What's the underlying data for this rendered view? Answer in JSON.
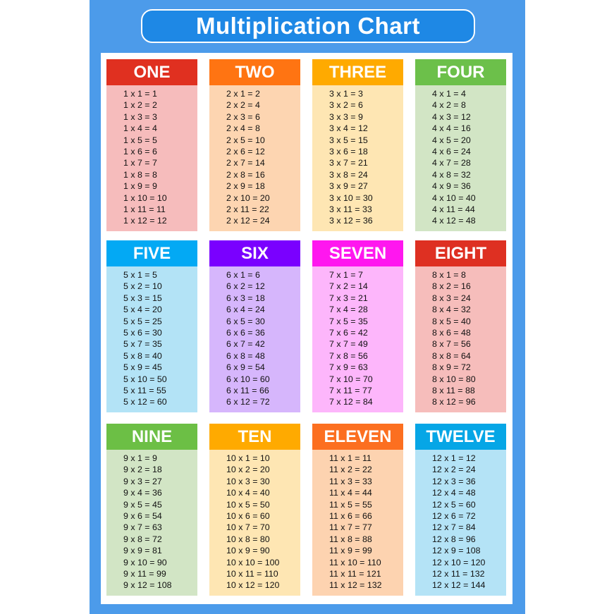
{
  "title": "Multiplication Chart",
  "cards": [
    {
      "label": "ONE",
      "header_color": "#e03020",
      "body_color": "#f6bcbc",
      "lines": [
        "1 x 1 = 1",
        "1 x 2 = 2",
        "1 x 3 = 3",
        "1 x 4 = 4",
        "1 x 5 = 5",
        "1 x 6 = 6",
        "1 x 7 = 7",
        "1 x 8 = 8",
        "1 x 9 = 9",
        "1 x 10 = 10",
        "1 x 11 = 11",
        "1 x 12 = 12"
      ]
    },
    {
      "label": "TWO",
      "header_color": "#ff7412",
      "body_color": "#fdd5b1",
      "lines": [
        "2 x 1 = 2",
        "2 x 2 = 4",
        "2 x 3 = 6",
        "2 x 4 = 8",
        "2 x 5 = 10",
        "2 x 6 = 12",
        "2 x 7 = 14",
        "2 x 8 = 16",
        "2 x 9 = 18",
        "2 x 10 = 20",
        "2 x 11 = 22",
        "2 x 12 = 24"
      ]
    },
    {
      "label": "THREE",
      "header_color": "#ffaa00",
      "body_color": "#fee6b3",
      "lines": [
        "3 x 1 = 3",
        "3 x 2 = 6",
        "3 x 3 = 9",
        "3 x 4 = 12",
        "3 x 5 = 15",
        "3 x 6 = 18",
        "3 x 7 = 21",
        "3 x 8 = 24",
        "3 x 9 = 27",
        "3 x 10 = 30",
        "3 x 11 = 33",
        "3 x 12 = 36"
      ]
    },
    {
      "label": "FOUR",
      "header_color": "#6cc04a",
      "body_color": "#d2e5c5",
      "lines": [
        "4 x 1 = 4",
        "4 x 2 = 8",
        "4 x 3 = 12",
        "4 x 4 = 16",
        "4 x 5 = 20",
        "4 x 6 = 24",
        "4 x 7 = 28",
        "4 x 8 = 32",
        "4 x 9 = 36",
        "4 x 10 = 40",
        "4 x 11 = 44",
        "4 x 12 = 48"
      ]
    },
    {
      "label": "FIVE",
      "header_color": "#03a9f4",
      "body_color": "#b3e3f6",
      "lines": [
        "5 x 1 = 5",
        "5 x 2 = 10",
        "5 x 3 = 15",
        "5 x 4 = 20",
        "5 x 5 = 25",
        "5 x 6 = 30",
        "5 x 7 = 35",
        "5 x 8 = 40",
        "5 x 9 = 45",
        "5 x 10 = 50",
        "5 x 11 = 55",
        "5 x 12 = 60"
      ]
    },
    {
      "label": "SIX",
      "header_color": "#7a00ff",
      "body_color": "#d6b6fc",
      "lines": [
        "6 x 1 = 6",
        "6 x 2 = 12",
        "6 x 3 = 18",
        "6 x 4 = 24",
        "6 x 5 = 30",
        "6 x 6 = 36",
        "6 x 7 = 42",
        "6 x 8 = 48",
        "6 x 9 = 54",
        "6 x 10 = 60",
        "6 x 11 = 66",
        "6 x 12 = 72"
      ]
    },
    {
      "label": "SEVEN",
      "header_color": "#ff17ef",
      "body_color": "#fdb6fb",
      "lines": [
        "7 x 1 = 7",
        "7 x 2 = 14",
        "7 x 3 = 21",
        "7 x 4 = 28",
        "7 x 5 = 35",
        "7 x 6 = 42",
        "7 x 7 = 49",
        "7 x 8 = 56",
        "7 x 9 = 63",
        "7 x 10 = 70",
        "7 x 11 = 77",
        "7 x 12 = 84"
      ]
    },
    {
      "label": "EIGHT",
      "header_color": "#de3022",
      "body_color": "#f6bdbb",
      "lines": [
        "8 x 1 = 8",
        "8 x 2 = 16",
        "8 x 3 = 24",
        "8 x 4 = 32",
        "8 x 5 = 40",
        "8 x 6 = 48",
        "8 x 7 = 56",
        "8 x 8 = 64",
        "8 x 9 = 72",
        "8 x 10 = 80",
        "8 x 11 = 88",
        "8 x 12 = 96"
      ]
    },
    {
      "label": "NINE",
      "header_color": "#6cbf45",
      "body_color": "#d2e5c5",
      "lines": [
        "9 x 1 = 9",
        "9 x 2 = 18",
        "9 x 3 = 27",
        "9 x 4 = 36",
        "9 x 5 = 45",
        "9 x 6 = 54",
        "9 x 7 = 63",
        "9 x 8 = 72",
        "9 x 9 = 81",
        "9 x 10 = 90",
        "9 x 11 = 99",
        "9 x 12 = 108"
      ]
    },
    {
      "label": "TEN",
      "header_color": "#ffaa00",
      "body_color": "#fee6b3",
      "lines": [
        "10 x 1 = 10",
        "10 x 2 = 20",
        "10 x 3 = 30",
        "10 x 4 = 40",
        "10 x 5 = 50",
        "10 x 6 = 60",
        "10 x 7 = 70",
        "10 x 8 = 80",
        "10 x 9 = 90",
        "10 x 10 = 100",
        "10 x 11 = 110",
        "10 x 12 = 120"
      ]
    },
    {
      "label": "ELEVEN",
      "header_color": "#fc6f20",
      "body_color": "#fdd3b0",
      "lines": [
        "11 x 1 = 11",
        "11 x 2 = 22",
        "11 x 3 = 33",
        "11 x 4 = 44",
        "11 x 5 = 55",
        "11 x 6 = 66",
        "11 x 7 = 77",
        "11 x 8 = 88",
        "11 x 9 = 99",
        "11 x 10 = 110",
        "11 x 11 = 121",
        "11 x 12 = 132"
      ]
    },
    {
      "label": "TWELVE",
      "header_color": "#06a6e6",
      "body_color": "#b4e3f6",
      "lines": [
        "12 x 1 = 12",
        "12 x 2 = 24",
        "12 x 3 = 36",
        "12 x 4 = 48",
        "12 x 5 = 60",
        "12 x 6 = 72",
        "12 x 7 = 84",
        "12 x 8 = 96",
        "12 x 9 = 108",
        "12 x 10 = 120",
        "12 x 11 = 132",
        "12 x 12 = 144"
      ]
    }
  ]
}
